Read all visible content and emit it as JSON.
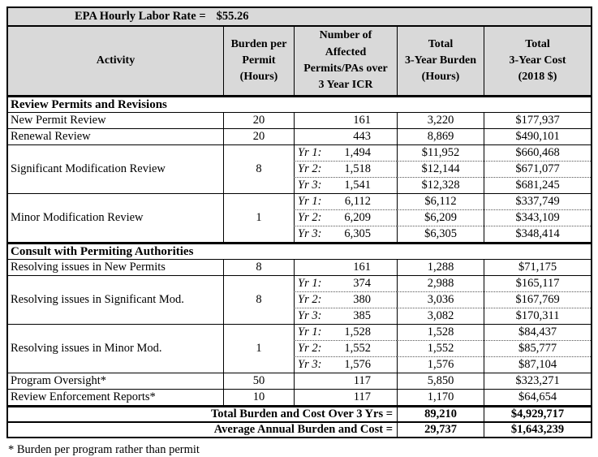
{
  "table": {
    "header_background": "#d9d9d9",
    "rate_label": "EPA Hourly Labor Rate =",
    "rate_value": "$55.26",
    "columns": [
      "Activity",
      "Burden per\nPermit\n(Hours)",
      "Number of\nAffected\nPermits/PAs over\n3 Year ICR",
      "Total\n3-Year Burden\n(Hours)",
      "Total\n3-Year Cost\n(2018 $)"
    ],
    "rows": [
      {
        "type": "section",
        "label": "Review Permits and Revisions"
      },
      {
        "type": "simple",
        "activity": "New Permit Review",
        "burden": "20",
        "permits": "161",
        "total_burden": "3,220",
        "total_cost": "$177,937"
      },
      {
        "type": "simple",
        "activity": "Renewal Review",
        "burden": "20",
        "permits": "443",
        "total_burden": "8,869",
        "total_cost": "$490,101"
      },
      {
        "type": "group",
        "activity": "Significant Modification Review",
        "burden": "8",
        "years": [
          {
            "label": "Yr 1:",
            "permits": "1,494",
            "total_burden": "$11,952",
            "total_cost": "$660,468"
          },
          {
            "label": "Yr 2:",
            "permits": "1,518",
            "total_burden": "$12,144",
            "total_cost": "$671,077"
          },
          {
            "label": "Yr 3:",
            "permits": "1,541",
            "total_burden": "$12,328",
            "total_cost": "$681,245"
          }
        ]
      },
      {
        "type": "group",
        "activity": "Minor Modification Review",
        "burden": "1",
        "years": [
          {
            "label": "Yr 1:",
            "permits": "6,112",
            "total_burden": "$6,112",
            "total_cost": "$337,749"
          },
          {
            "label": "Yr 2:",
            "permits": "6,209",
            "total_burden": "$6,209",
            "total_cost": "$343,109"
          },
          {
            "label": "Yr 3:",
            "permits": "6,305",
            "total_burden": "$6,305",
            "total_cost": "$348,414"
          }
        ]
      },
      {
        "type": "section",
        "label": "Consult with Permiting Authorities"
      },
      {
        "type": "simple",
        "activity": "Resolving issues in New Permits",
        "burden": "8",
        "permits": "161",
        "total_burden": "1,288",
        "total_cost": "$71,175"
      },
      {
        "type": "group",
        "activity": "Resolving issues in Significant Mod.",
        "burden": "8",
        "years": [
          {
            "label": "Yr 1:",
            "permits": "374",
            "total_burden": "2,988",
            "total_cost": "$165,117"
          },
          {
            "label": "Yr 2:",
            "permits": "380",
            "total_burden": "3,036",
            "total_cost": "$167,769"
          },
          {
            "label": "Yr 3:",
            "permits": "385",
            "total_burden": "3,082",
            "total_cost": "$170,311"
          }
        ]
      },
      {
        "type": "group",
        "activity": "Resolving issues in Minor Mod.",
        "burden": "1",
        "years": [
          {
            "label": "Yr 1:",
            "permits": "1,528",
            "total_burden": "1,528",
            "total_cost": "$84,437"
          },
          {
            "label": "Yr 2:",
            "permits": "1,552",
            "total_burden": "1,552",
            "total_cost": "$85,777"
          },
          {
            "label": "Yr 3:",
            "permits": "1,576",
            "total_burden": "1,576",
            "total_cost": "$87,104"
          }
        ]
      },
      {
        "type": "simple",
        "activity": "Program Oversight*",
        "burden": "50",
        "permits": "117",
        "total_burden": "5,850",
        "total_cost": "$323,271"
      },
      {
        "type": "simple",
        "activity": "Review Enforcement Reports*",
        "burden": "10",
        "permits": "117",
        "total_burden": "1,170",
        "total_cost": "$64,654"
      },
      {
        "type": "summary",
        "label": "Total Burden and Cost Over 3 Yrs =",
        "total_burden": "89,210",
        "total_cost": "$4,929,717"
      },
      {
        "type": "summary",
        "label": "Average Annual Burden and Cost  =",
        "total_burden": "29,737",
        "total_cost": "$1,643,239"
      }
    ],
    "footnote": "* Burden per program rather than permit"
  }
}
